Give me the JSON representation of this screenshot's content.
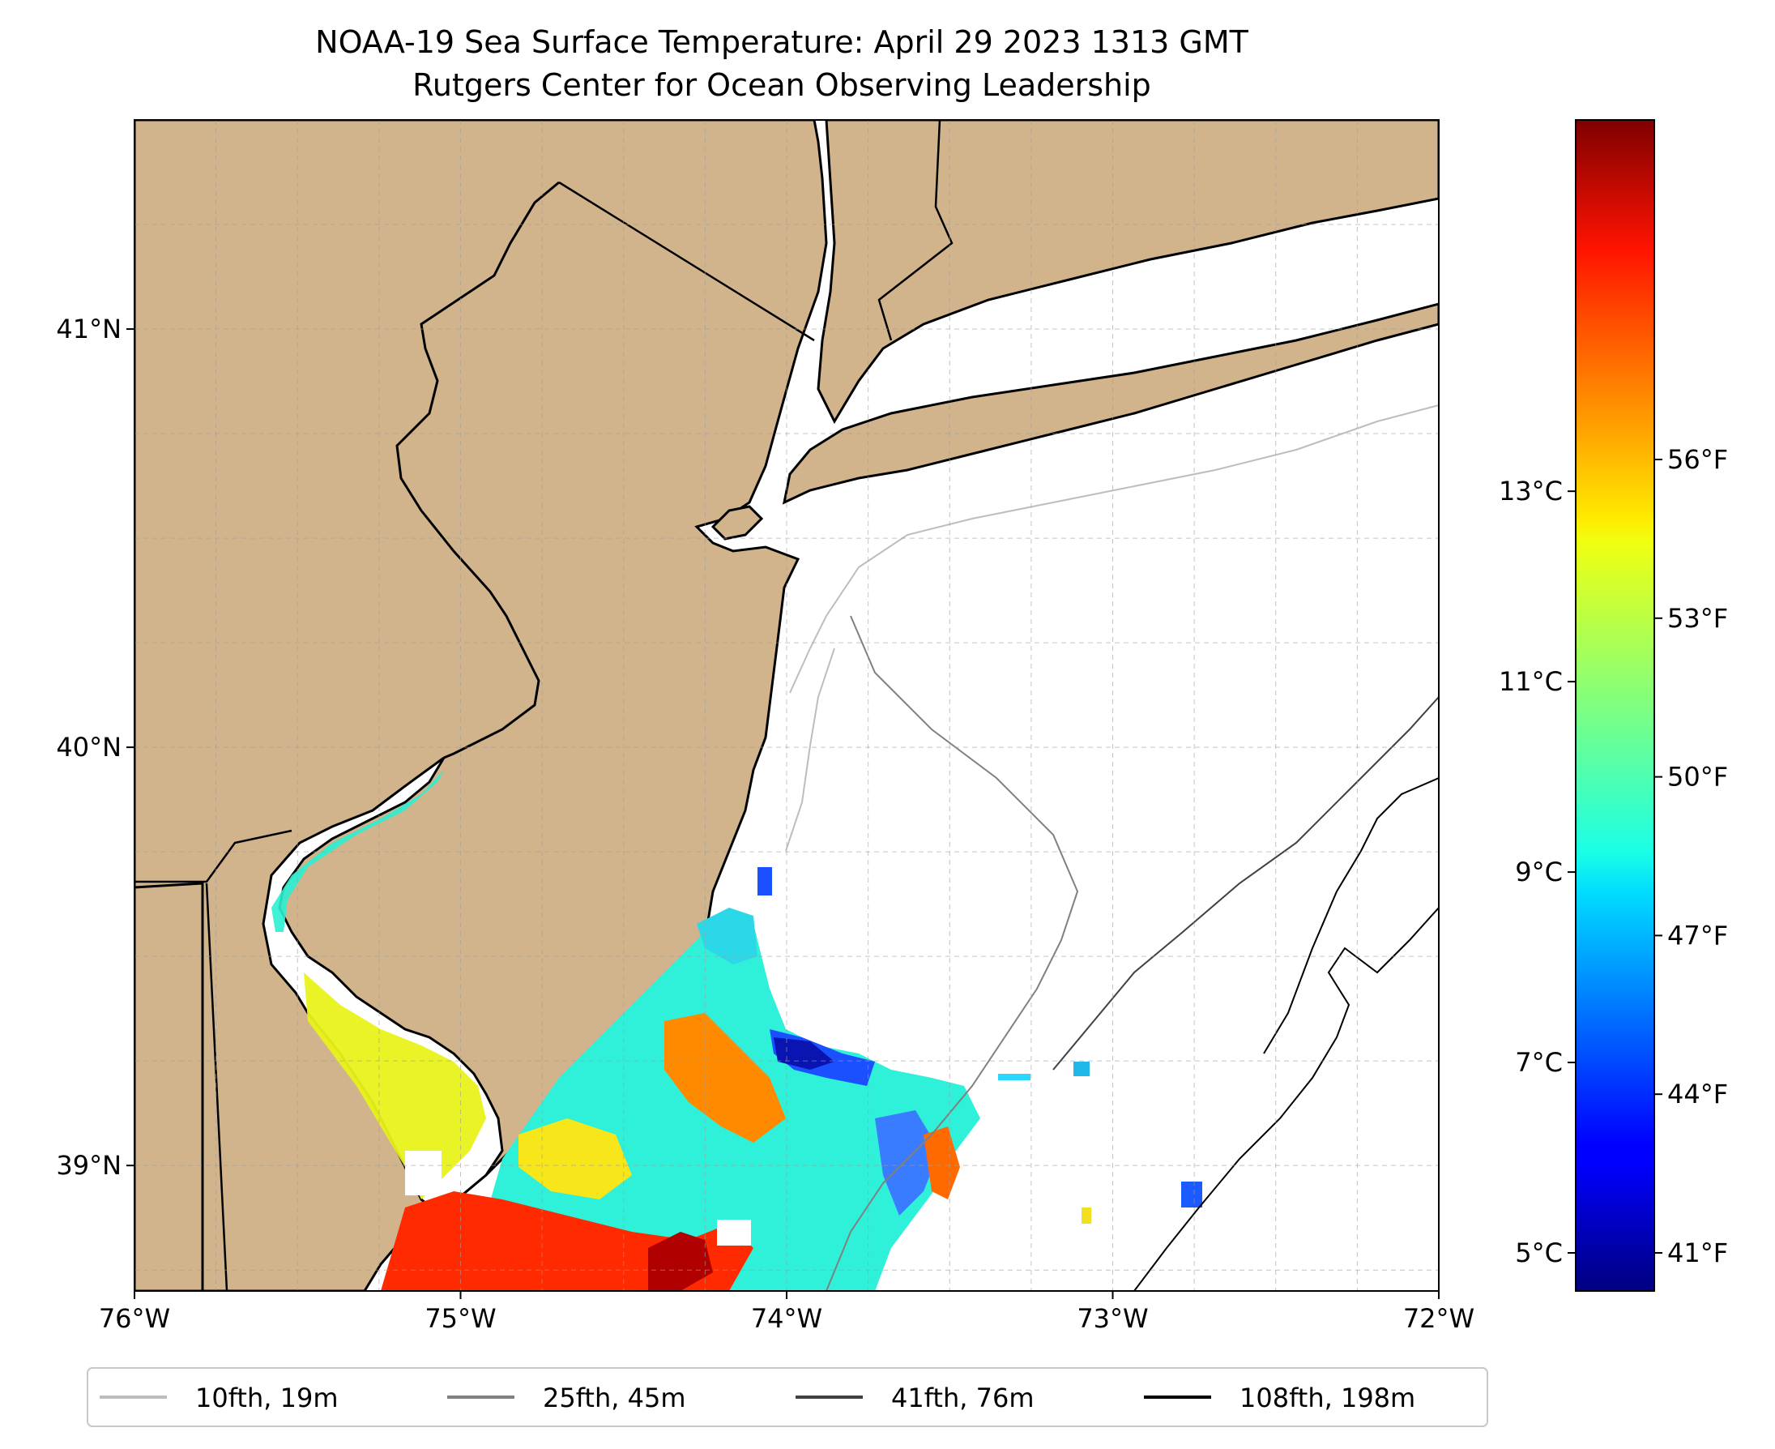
{
  "title": {
    "line1": "NOAA-19 Sea Surface Temperature: April 29 2023 1313 GMT",
    "line2": "Rutgers Center for Ocean Observing Leadership"
  },
  "map": {
    "lon_range": [
      -76,
      -72
    ],
    "lat_range": [
      38.7,
      41.5
    ],
    "lon_ticks": [
      {
        "value": -76,
        "label": "76°W"
      },
      {
        "value": -75,
        "label": "75°W"
      },
      {
        "value": -74,
        "label": "74°W"
      },
      {
        "value": -73,
        "label": "73°W"
      },
      {
        "value": -72,
        "label": "72°W"
      }
    ],
    "lat_ticks": [
      {
        "value": 39,
        "label": "39°N"
      },
      {
        "value": 40,
        "label": "40°N"
      },
      {
        "value": 41,
        "label": "41°N"
      }
    ],
    "gridlines": true,
    "colors": {
      "land": "#d2b48c",
      "ocean": "#ffffff",
      "coast": "#000000",
      "grid": "#9e9e9e"
    }
  },
  "colorbar": {
    "colormap": "jet",
    "range_c": [
      4.6,
      16.9
    ],
    "celsius_ticks": [
      {
        "value": 5,
        "label": "5°C"
      },
      {
        "value": 7,
        "label": "7°C"
      },
      {
        "value": 9,
        "label": "9°C"
      },
      {
        "value": 11,
        "label": "11°C"
      },
      {
        "value": 13,
        "label": "13°C"
      }
    ],
    "fahrenheit_ticks": [
      {
        "value": 41,
        "label": "41°F"
      },
      {
        "value": 44,
        "label": "44°F"
      },
      {
        "value": 47,
        "label": "47°F"
      },
      {
        "value": 50,
        "label": "50°F"
      },
      {
        "value": 53,
        "label": "53°F"
      },
      {
        "value": 56,
        "label": "56°F"
      }
    ]
  },
  "legend": {
    "placement": "bottom",
    "items": [
      {
        "label": "10fth, 19m",
        "color": "#bdbdbd"
      },
      {
        "label": "25fth, 45m",
        "color": "#808080"
      },
      {
        "label": "41fth, 76m",
        "color": "#404040"
      },
      {
        "label": "108fth, 198m",
        "color": "#000000"
      }
    ]
  }
}
